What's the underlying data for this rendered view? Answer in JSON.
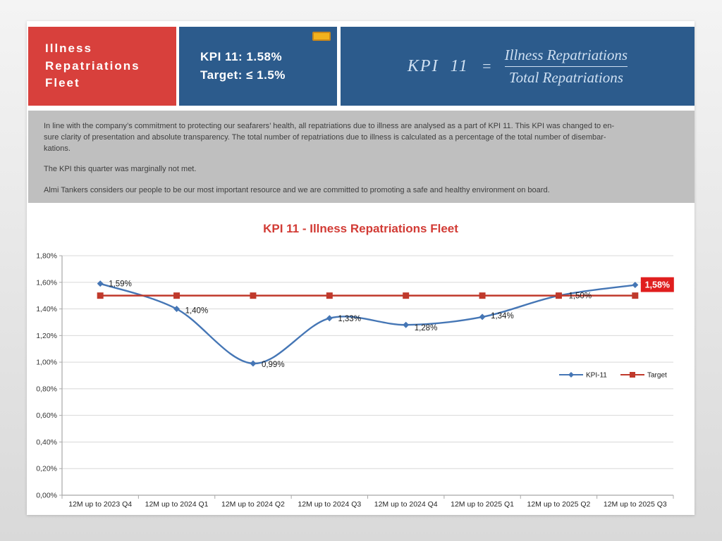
{
  "header": {
    "title": "Illness\nRepatriations\nFleet",
    "summary": {
      "kpi_line": "KPI 11: 1.58%",
      "target_line": "Target: ≤ 1.5%"
    },
    "formula": {
      "lhs": "KPI  11",
      "equals": "=",
      "numerator": "Illness Repatriations",
      "denominator": "Total Repatriations"
    },
    "colors": {
      "title_bg": "#d8403c",
      "panel_bg": "#2c5b8c",
      "badge": "#f2b21d"
    }
  },
  "description": {
    "paragraphs": [
      "In line with the company’s commitment to protecting our seafarers’ health, all repatriations due to illness are analysed as a part of KPI 11. This KPI was changed to en-\nsure clarity of presentation and absolute transparency. The total number of repatriations due to illness is calculated as a percentage of the total number of disembar-\nkations.",
      "The KPI this quarter was marginally not met.",
      "Almi Tankers considers our people to be our most important resource and we are committed to promoting a safe and healthy environment on board."
    ]
  },
  "chart_data": {
    "type": "line",
    "title": "KPI 11 - Illness Repatriations Fleet",
    "title_color": "#d23b35",
    "categories": [
      "12M up to 2023 Q4",
      "12M up to 2024 Q1",
      "12M up to 2024 Q2",
      "12M up to 2024 Q3",
      "12M up to 2024 Q4",
      "12M up to 2025 Q1",
      "12M up to 2025 Q2",
      "12M up to 2025 Q3"
    ],
    "series": [
      {
        "name": "KPI-11",
        "color": "#4576b5",
        "marker": "diamond",
        "smooth": true,
        "values": [
          1.59,
          1.4,
          0.99,
          1.33,
          1.28,
          1.34,
          1.5,
          1.58
        ],
        "point_labels": [
          "1,59%",
          "1,40%",
          "0,99%",
          "1,33%",
          "1,28%",
          "1,34%",
          "1,50%",
          "1,58%"
        ]
      },
      {
        "name": "Target",
        "color": "#c0392b",
        "marker": "square",
        "smooth": false,
        "values": [
          1.5,
          1.5,
          1.5,
          1.5,
          1.5,
          1.5,
          1.5,
          1.5
        ]
      }
    ],
    "ylim": [
      0,
      1.8
    ],
    "ytick_step": 0.2,
    "ytick_labels": [
      "0,00%",
      "0,20%",
      "0,40%",
      "0,60%",
      "0,80%",
      "1,00%",
      "1,20%",
      "1,40%",
      "1,60%",
      "1,80%"
    ],
    "grid": true,
    "legend_position": "middle-right",
    "highlight_last_label": {
      "text": "1,58%",
      "bg_color": "#e01e1e",
      "text_color": "#ffffff"
    }
  }
}
